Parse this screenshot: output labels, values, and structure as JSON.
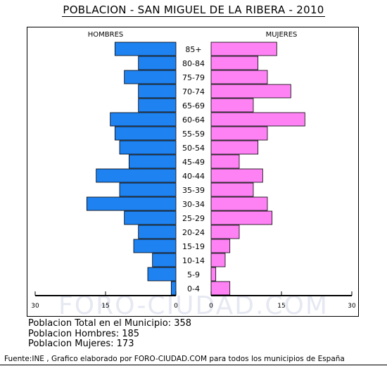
{
  "title": "POBLACION - SAN MIGUEL DE LA RIBERA - 2010",
  "watermark": "FORO-CIUDAD.COM",
  "totals": {
    "total": "Poblacion Total en el Municipio: 358",
    "men": "Poblacion Hombres: 185",
    "women": "Poblacion Mujeres: 173"
  },
  "footer": "Fuente:INE , Grafico elaborado por FORO-CIUDAD.COM para todos los municipios de España",
  "colors": {
    "men": "#1e82f0",
    "women": "#ff82f5"
  },
  "chart_data": {
    "type": "bar",
    "orientation": "horizontal",
    "title": "POBLACION - SAN MIGUEL DE LA RIBERA - 2010",
    "categories": [
      "85+",
      "80-84",
      "75-79",
      "70-74",
      "65-69",
      "60-64",
      "55-59",
      "50-54",
      "45-49",
      "40-44",
      "35-39",
      "30-34",
      "25-29",
      "20-24",
      "15-19",
      "10-14",
      "5-9",
      "0-4"
    ],
    "series": [
      {
        "name": "HOMBRES",
        "values": [
          13,
          8,
          11,
          8,
          8,
          14,
          13,
          12,
          10,
          17,
          12,
          19,
          11,
          8,
          9,
          5,
          6,
          1
        ]
      },
      {
        "name": "MUJERES",
        "values": [
          14,
          10,
          12,
          17,
          9,
          20,
          12,
          10,
          6,
          11,
          9,
          12,
          13,
          6,
          4,
          3,
          1,
          4
        ]
      }
    ],
    "xlim": [
      0,
      30
    ],
    "xticks": [
      "30",
      "15",
      "0",
      "0",
      "15",
      "30"
    ]
  }
}
